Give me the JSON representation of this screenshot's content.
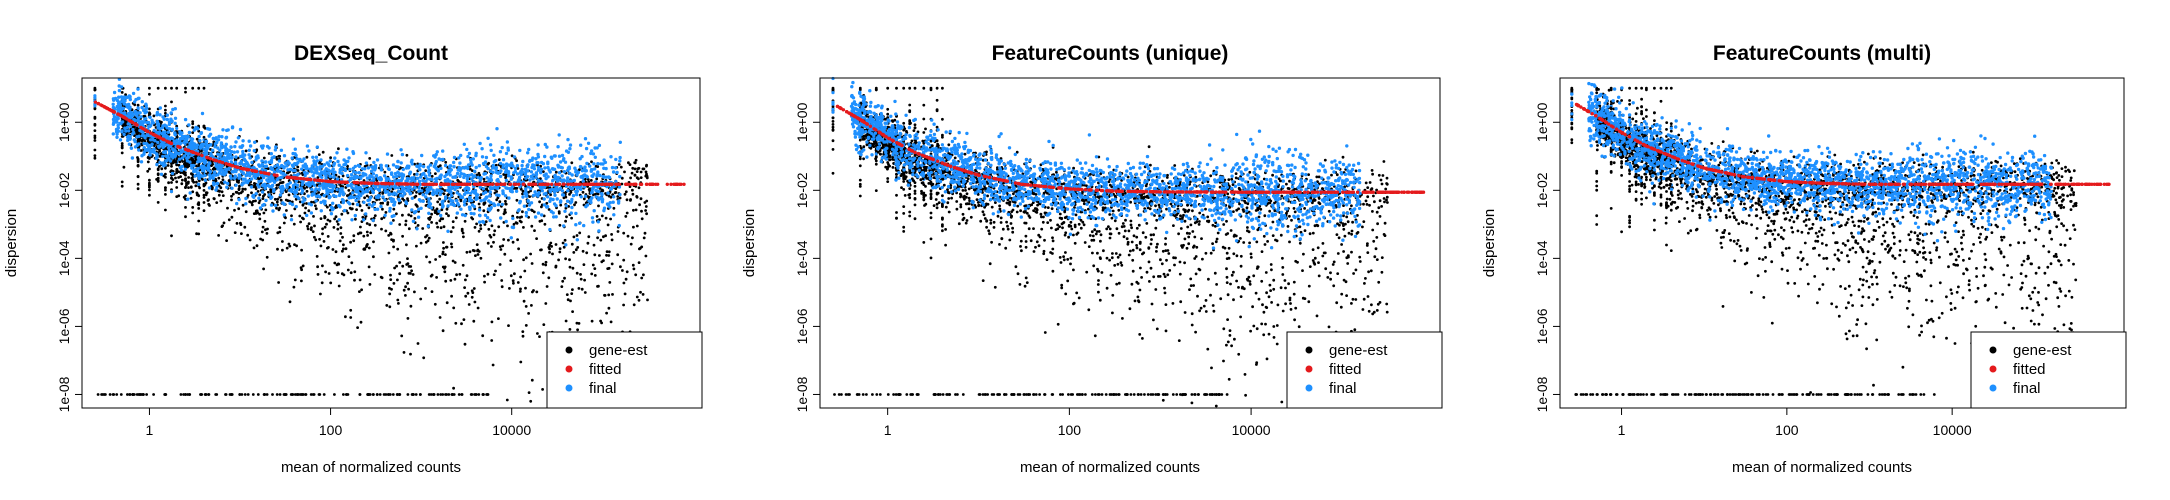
{
  "chart_data": [
    {
      "type": "scatter",
      "title": "DEXSeq_Count",
      "xlabel": "mean of normalized counts",
      "ylabel": "dispersion",
      "xscale": "log",
      "yscale": "log",
      "xlim": [
        0.18,
        1200000
      ],
      "ylim": [
        4e-09,
        20
      ],
      "xticks": [
        1,
        100,
        10000
      ],
      "xtick_labels": [
        "1",
        "100",
        "10000"
      ],
      "yticks": [
        1e-08,
        1e-06,
        0.0001,
        0.01,
        1
      ],
      "ytick_labels": [
        "1e-08",
        "1e-06",
        "1e-04",
        "1e-02",
        "1e+00"
      ],
      "grid": false,
      "legend_position": "bottom-right",
      "series": [
        {
          "name": "gene-est",
          "color": "#000000"
        },
        {
          "name": "fitted",
          "color": "#e41a1c"
        },
        {
          "name": "final",
          "color": "#1e90ff"
        }
      ],
      "fitted_curve": {
        "x": [
          0.25,
          0.5,
          1,
          2,
          5,
          10,
          30,
          100,
          300,
          1000,
          10000,
          100000,
          800000
        ],
        "y": [
          4.0,
          1.5,
          0.5,
          0.2,
          0.08,
          0.045,
          0.025,
          0.018,
          0.016,
          0.015,
          0.015,
          0.015,
          0.015
        ]
      },
      "gene_est_floor": 1e-08,
      "max_mean": 800000
    },
    {
      "type": "scatter",
      "title": "FeatureCounts (unique)",
      "xlabel": "mean of normalized counts",
      "ylabel": "dispersion",
      "xscale": "log",
      "yscale": "log",
      "xlim": [
        0.18,
        1200000
      ],
      "ylim": [
        4e-09,
        20
      ],
      "xticks": [
        1,
        100,
        10000
      ],
      "xtick_labels": [
        "1",
        "100",
        "10000"
      ],
      "yticks": [
        1e-08,
        1e-06,
        0.0001,
        0.01,
        1
      ],
      "ytick_labels": [
        "1e-08",
        "1e-06",
        "1e-04",
        "1e-02",
        "1e+00"
      ],
      "grid": false,
      "legend_position": "bottom-right",
      "series": [
        {
          "name": "gene-est",
          "color": "#000000"
        },
        {
          "name": "fitted",
          "color": "#e41a1c"
        },
        {
          "name": "final",
          "color": "#1e90ff"
        }
      ],
      "fitted_curve": {
        "x": [
          0.25,
          0.5,
          1,
          2,
          5,
          10,
          30,
          100,
          300,
          1000,
          10000,
          100000,
          800000
        ],
        "y": [
          3.5,
          1.2,
          0.35,
          0.13,
          0.05,
          0.028,
          0.015,
          0.011,
          0.0095,
          0.009,
          0.0088,
          0.0088,
          0.0088
        ]
      },
      "gene_est_floor": 1e-08,
      "max_mean": 800000
    },
    {
      "type": "scatter",
      "title": "FeatureCounts (multi)",
      "xlabel": "mean of normalized counts",
      "ylabel": "dispersion",
      "xscale": "log",
      "yscale": "log",
      "xlim": [
        0.18,
        1200000
      ],
      "ylim": [
        4e-09,
        20
      ],
      "xticks": [
        1,
        100,
        10000
      ],
      "xtick_labels": [
        "1",
        "100",
        "10000"
      ],
      "yticks": [
        1e-08,
        1e-06,
        0.0001,
        0.01,
        1
      ],
      "ytick_labels": [
        "1e-08",
        "1e-06",
        "1e-04",
        "1e-02",
        "1e+00"
      ],
      "grid": false,
      "legend_position": "bottom-right",
      "series": [
        {
          "name": "gene-est",
          "color": "#000000"
        },
        {
          "name": "fitted",
          "color": "#e41a1c"
        },
        {
          "name": "final",
          "color": "#1e90ff"
        }
      ],
      "fitted_curve": {
        "x": [
          0.25,
          0.5,
          1,
          2,
          5,
          10,
          30,
          100,
          300,
          1000,
          10000,
          100000,
          800000
        ],
        "y": [
          4.0,
          1.5,
          0.5,
          0.2,
          0.08,
          0.045,
          0.025,
          0.018,
          0.016,
          0.015,
          0.015,
          0.015,
          0.015
        ]
      },
      "gene_est_floor": 1e-08,
      "max_mean": 800000
    }
  ]
}
